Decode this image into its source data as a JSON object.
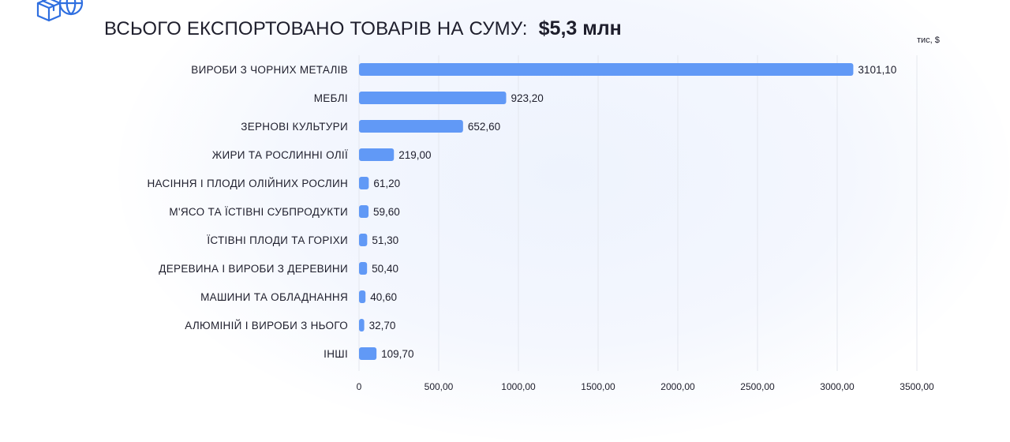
{
  "header": {
    "title": "ВСЬОГО ЕКСПОРТОВАНО ТОВАРІВ НА СУМУ:",
    "total": "$5,3 млн",
    "logo_icon": "box-globe-icon"
  },
  "colors": {
    "bar": "#6199f6",
    "grid": "#e4e7ee",
    "text": "#1e1e2c"
  },
  "chart_data": {
    "type": "bar",
    "orientation": "horizontal",
    "title": "ВСЬОГО ЕКСПОРТОВАНО ТОВАРІВ НА СУМУ:",
    "subtitle": "$5,3 млн",
    "unit": "тис, $",
    "categories": [
      "ВИРОБИ З ЧОРНИХ МЕТАЛІВ",
      "МЕБЛІ",
      "ЗЕРНОВІ КУЛЬТУРИ",
      "ЖИРИ ТА РОСЛИННІ ОЛІЇ",
      "НАСІННЯ І ПЛОДИ ОЛІЙНИХ РОСЛИН",
      "М'ЯСО ТА ЇСТІВНІ СУБПРОДУКТИ",
      "ЇСТІВНІ ПЛОДИ ТА ГОРІХИ",
      "ДЕРЕВИНА І ВИРОБИ З ДЕРЕВИНИ",
      "МАШИНИ ТА ОБЛАДНАННЯ",
      "АЛЮМІНІЙ І ВИРОБИ З НЬОГО",
      "ІНШІ"
    ],
    "values": [
      3101.1,
      923.2,
      652.6,
      219.0,
      61.2,
      59.6,
      51.3,
      50.4,
      40.6,
      32.7,
      109.7
    ],
    "value_labels": [
      "3101,10",
      "923,20",
      "652,60",
      "219,00",
      "61,20",
      "59,60",
      "51,30",
      "50,40",
      "40,60",
      "32,70",
      "109,70"
    ],
    "xlim": [
      0,
      3500
    ],
    "xticks": [
      0,
      500,
      1000,
      1500,
      2000,
      2500,
      3000,
      3500
    ],
    "xtick_labels": [
      "0",
      "500,00",
      "1000,00",
      "1500,00",
      "2000,00",
      "2500,00",
      "3000,00",
      "3500,00"
    ],
    "grid": true,
    "legend": "none"
  }
}
